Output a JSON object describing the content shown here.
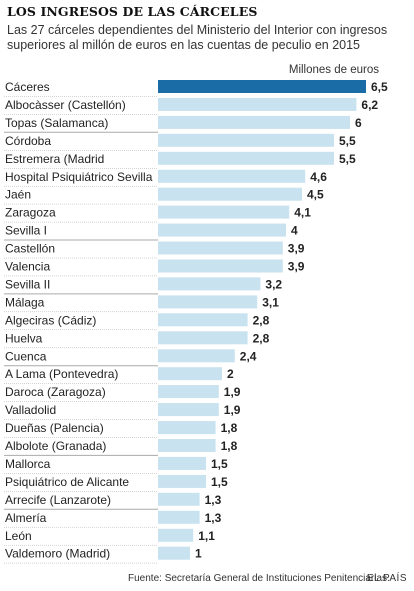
{
  "header": {
    "title": "LOS INGRESOS DE LAS CÁRCELES",
    "subtitle": "Las 27 cárceles dependientes del Ministerio del Interior con ingresos superiores al millón de euros en las cuentas de peculio en 2015"
  },
  "footer": {
    "source": "Fuente: Secretaría General de Instituciones Penitenciarias.",
    "brand": "EL PAÍS"
  },
  "colors": {
    "highlight": "#1a6ca6",
    "bar": "#c8e2ef",
    "separator": "#aaaaaa",
    "text": "#222222"
  },
  "chart_data": {
    "type": "bar",
    "orientation": "horizontal",
    "unit_label": "Millones de euros",
    "xlim": [
      0,
      6.5
    ],
    "grid": false,
    "highlighted_category": "Cáceres",
    "categories": [
      "Cáceres",
      "Albocàsser (Castellón)",
      "Topas (Salamanca)",
      "Córdoba",
      "Estremera (Madrid",
      "Hospital Psiquiátrico Sevilla",
      "Jaén",
      "Zaragoza",
      "Sevilla I",
      "Castellón",
      "Valencia",
      "Sevilla II",
      "Málaga",
      "Algeciras (Cádiz)",
      "Huelva",
      "Cuenca",
      "A Lama (Pontevedra)",
      "Daroca (Zaragoza)",
      "Valladolid",
      "Dueñas (Palencia)",
      "Albolote (Granada)",
      "Mallorca",
      "Psiquiátrico de Alicante",
      "Arrecife (Lanzarote)",
      "Almería",
      "León",
      "Valdemoro (Madrid)"
    ],
    "values": [
      6.5,
      6.2,
      6,
      5.5,
      5.5,
      4.6,
      4.5,
      4.1,
      4,
      3.9,
      3.9,
      3.2,
      3.1,
      2.8,
      2.8,
      2.4,
      2,
      1.9,
      1.9,
      1.8,
      1.8,
      1.5,
      1.5,
      1.3,
      1.3,
      1.1,
      1
    ],
    "value_labels": [
      "6,5",
      "6,2",
      "6",
      "5,5",
      "5,5",
      "4,6",
      "4,5",
      "4,1",
      "4",
      "3,9",
      "3,9",
      "3,2",
      "3,1",
      "2,8",
      "2,8",
      "2,4",
      "2",
      "1,9",
      "1,9",
      "1,8",
      "1,8",
      "1,5",
      "1,5",
      "1,3",
      "1,3",
      "1,1",
      "1"
    ]
  }
}
